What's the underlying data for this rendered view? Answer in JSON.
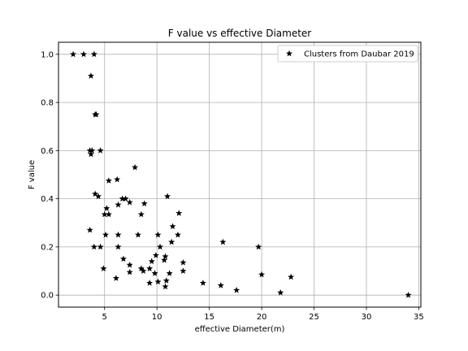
{
  "chart_data": {
    "type": "scatter",
    "title": "F value vs effective Diameter",
    "xlabel": "effective Diameter(m)",
    "ylabel": "F value",
    "xlim": [
      0.6,
      35.2
    ],
    "ylim": [
      -0.05,
      1.05
    ],
    "xticks": [
      5,
      10,
      15,
      20,
      25,
      30,
      35
    ],
    "yticks": [
      0.0,
      0.2,
      0.4,
      0.6,
      0.8,
      1.0
    ],
    "xtick_labels": [
      "5",
      "10",
      "15",
      "20",
      "25",
      "30",
      "35"
    ],
    "ytick_labels": [
      "0.0",
      "0.2",
      "0.4",
      "0.6",
      "0.8",
      "1.0"
    ],
    "grid": true,
    "legend": "top-right",
    "marker_color": "#000000",
    "grid_color": "#b0b0b0",
    "series": [
      {
        "name": "Clusters from Daubar 2019",
        "marker": "star",
        "points": [
          [
            2.0,
            1.0
          ],
          [
            3.0,
            1.0
          ],
          [
            4.0,
            1.0
          ],
          [
            3.7,
            0.91
          ],
          [
            4.2,
            0.75
          ],
          [
            4.1,
            0.75
          ],
          [
            3.6,
            0.6
          ],
          [
            3.8,
            0.6
          ],
          [
            3.7,
            0.585
          ],
          [
            4.6,
            0.6
          ],
          [
            4.1,
            0.42
          ],
          [
            4.4,
            0.41
          ],
          [
            3.6,
            0.27
          ],
          [
            4.0,
            0.2
          ],
          [
            4.6,
            0.2
          ],
          [
            5.0,
            0.335
          ],
          [
            5.2,
            0.36
          ],
          [
            5.4,
            0.335
          ],
          [
            5.4,
            0.475
          ],
          [
            6.2,
            0.48
          ],
          [
            5.1,
            0.25
          ],
          [
            4.9,
            0.11
          ],
          [
            6.3,
            0.375
          ],
          [
            6.7,
            0.4
          ],
          [
            7.0,
            0.4
          ],
          [
            7.4,
            0.385
          ],
          [
            6.3,
            0.25
          ],
          [
            6.3,
            0.2
          ],
          [
            6.8,
            0.15
          ],
          [
            6.1,
            0.07
          ],
          [
            7.4,
            0.125
          ],
          [
            7.4,
            0.095
          ],
          [
            7.9,
            0.53
          ],
          [
            8.5,
            0.335
          ],
          [
            8.8,
            0.38
          ],
          [
            8.2,
            0.25
          ],
          [
            8.5,
            0.11
          ],
          [
            8.7,
            0.1
          ],
          [
            9.3,
            0.05
          ],
          [
            9.3,
            0.11
          ],
          [
            9.5,
            0.14
          ],
          [
            9.8,
            0.09
          ],
          [
            9.9,
            0.165
          ],
          [
            10.1,
            0.25
          ],
          [
            10.3,
            0.2
          ],
          [
            10.1,
            0.055
          ],
          [
            10.8,
            0.16
          ],
          [
            10.7,
            0.145
          ],
          [
            11.0,
            0.41
          ],
          [
            10.9,
            0.06
          ],
          [
            10.8,
            0.035
          ],
          [
            11.2,
            0.09
          ],
          [
            11.5,
            0.285
          ],
          [
            11.4,
            0.22
          ],
          [
            12.1,
            0.34
          ],
          [
            12.0,
            0.25
          ],
          [
            12.5,
            0.135
          ],
          [
            12.5,
            0.1
          ],
          [
            14.4,
            0.05
          ],
          [
            16.1,
            0.04
          ],
          [
            16.3,
            0.22
          ],
          [
            17.6,
            0.02
          ],
          [
            19.7,
            0.2
          ],
          [
            20.0,
            0.085
          ],
          [
            21.8,
            0.01
          ],
          [
            22.8,
            0.075
          ],
          [
            34.0,
            0.0
          ]
        ]
      }
    ]
  }
}
